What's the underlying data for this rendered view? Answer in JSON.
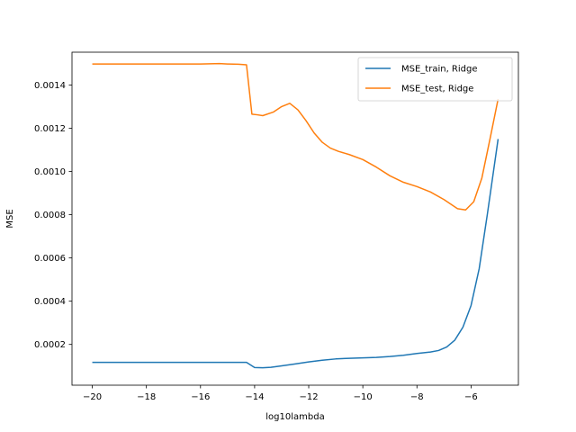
{
  "chart_data": {
    "type": "line",
    "title": "",
    "xlabel": "log10lambda",
    "ylabel": "MSE",
    "xlim": [
      -20.75,
      -4.25
    ],
    "ylim": [
      1.15e-05,
      0.0015515
    ],
    "xticks": [
      -20,
      -18,
      -16,
      -14,
      -12,
      -10,
      -8,
      -6
    ],
    "xtick_labels": [
      "−20",
      "−18",
      "−16",
      "−14",
      "−12",
      "−10",
      "−8",
      "−6"
    ],
    "yticks": [
      0.0002,
      0.0004,
      0.0006,
      0.0008,
      0.001,
      0.0012,
      0.0014
    ],
    "ytick_labels": [
      "0.0002",
      "0.0004",
      "0.0006",
      "0.0008",
      "0.0010",
      "0.0012",
      "0.0014"
    ],
    "grid": false,
    "legend_position": "upper right",
    "series": [
      {
        "name": "MSE_train, Ridge",
        "color": "#1f77b4",
        "x": [
          -20,
          -19,
          -18,
          -17,
          -16,
          -15,
          -14.3,
          -14,
          -13.7,
          -13.4,
          -13,
          -12.5,
          -12,
          -11.5,
          -11,
          -10.5,
          -10,
          -9.5,
          -9,
          -8.5,
          -8,
          -7.5,
          -7.2,
          -6.9,
          -6.6,
          -6.3,
          -6.0,
          -5.7,
          -5.4,
          -5.0
        ],
        "y": [
          0.000117,
          0.000117,
          0.000117,
          0.000117,
          0.000117,
          0.000117,
          0.000117,
          9.3e-05,
          9.2e-05,
          9.4e-05,
          0.000101,
          0.00011,
          0.000119,
          0.000127,
          0.000133,
          0.000136,
          0.000138,
          0.00014,
          0.000144,
          0.00015,
          0.000158,
          0.000165,
          0.000172,
          0.000188,
          0.00022,
          0.00028,
          0.00038,
          0.00055,
          0.0008,
          0.00115
        ]
      },
      {
        "name": "MSE_test, Ridge",
        "color": "#ff7f0e",
        "x": [
          -20,
          -18,
          -16,
          -15.3,
          -15,
          -14.6,
          -14.3,
          -14.1,
          -13.9,
          -13.7,
          -13.3,
          -13,
          -12.7,
          -12.4,
          -12.1,
          -11.8,
          -11.5,
          -11.2,
          -10.9,
          -10.5,
          -10,
          -9.5,
          -9,
          -8.5,
          -8,
          -7.5,
          -7,
          -6.5,
          -6.2,
          -5.9,
          -5.6,
          -5.3,
          -5.0
        ],
        "y": [
          0.001497,
          0.001497,
          0.001497,
          0.001499,
          0.001497,
          0.001496,
          0.001493,
          0.001265,
          0.001262,
          0.001258,
          0.001275,
          0.0013,
          0.001315,
          0.001285,
          0.001235,
          0.001178,
          0.001135,
          0.001108,
          0.001093,
          0.001078,
          0.001055,
          0.00102,
          0.00098,
          0.00095,
          0.00093,
          0.000905,
          0.00087,
          0.000828,
          0.000822,
          0.00086,
          0.00097,
          0.00115,
          0.001335
        ]
      }
    ]
  }
}
